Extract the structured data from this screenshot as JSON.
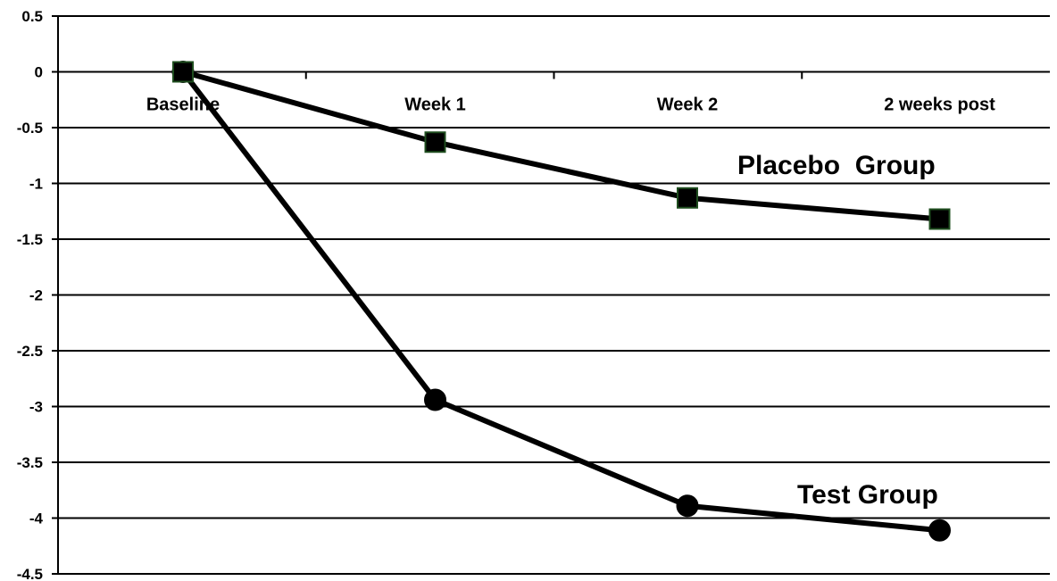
{
  "chart_data": {
    "type": "line",
    "categories": [
      "Baseline",
      "Week 1",
      "Week 2",
      "2 weeks post"
    ],
    "ylim": [
      -4.5,
      0.5
    ],
    "yticks": [
      "0.5",
      "0",
      "-0.5",
      "-1",
      "-1.5",
      "-2",
      "-2.5",
      "-3",
      "-3.5",
      "-4",
      "-4.5"
    ],
    "grid": true,
    "series": [
      {
        "name": "Placebo  Group",
        "marker": "square",
        "values": [
          0,
          -0.63,
          -1.13,
          -1.32
        ],
        "marker_fill": "#000000",
        "marker_edge": "#1e4d1e"
      },
      {
        "name": "Test Group",
        "marker": "circle",
        "values": [
          0,
          -2.94,
          -3.89,
          -4.11
        ],
        "marker_fill": "#000000",
        "marker_edge": "#000000"
      }
    ]
  }
}
